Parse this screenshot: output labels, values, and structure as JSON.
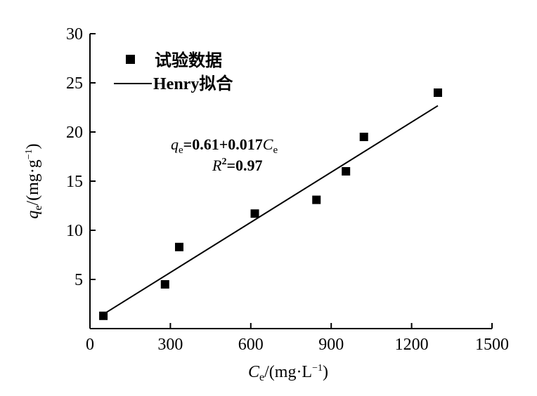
{
  "chart_data": {
    "type": "scatter",
    "xlim": [
      0,
      1500
    ],
    "ylim": [
      0,
      30
    ],
    "x_ticks": [
      0,
      300,
      600,
      900,
      1200,
      1500
    ],
    "y_ticks": [
      5,
      10,
      15,
      20,
      25,
      30
    ],
    "xlabel": {
      "sym": "C",
      "sub": "e",
      "unit": "/(mg·L",
      "sup": "−1",
      "close": ")"
    },
    "ylabel": {
      "sym": "q",
      "sub": "e",
      "unit": "/(mg·g",
      "sup": "−1",
      "close": ")"
    },
    "legend": {
      "position": "top-left",
      "points_label": "试验数据",
      "line_label": "Henry拟合"
    },
    "series": [
      {
        "name": "试验数据",
        "kind": "scatter",
        "marker": "square",
        "color": "#000000",
        "points": [
          {
            "x": 50,
            "y": 1.3
          },
          {
            "x": 280,
            "y": 4.5
          },
          {
            "x": 333,
            "y": 8.3
          },
          {
            "x": 615,
            "y": 11.7
          },
          {
            "x": 845,
            "y": 13.1
          },
          {
            "x": 955,
            "y": 16.0
          },
          {
            "x": 1022,
            "y": 19.5
          },
          {
            "x": 1298,
            "y": 24.0
          }
        ]
      },
      {
        "name": "Henry拟合",
        "kind": "line",
        "color": "#000000",
        "intercept": 0.61,
        "slope": 0.017,
        "x_range": [
          50,
          1298
        ]
      }
    ],
    "annotation": {
      "eq_q": "q",
      "eq_q_sub": "e",
      "eq_mid": "=0.61+0.017",
      "eq_c": "C",
      "eq_c_sub": "e",
      "r_sym": "R",
      "r_sup": "2",
      "r_val": "=0.97"
    }
  }
}
